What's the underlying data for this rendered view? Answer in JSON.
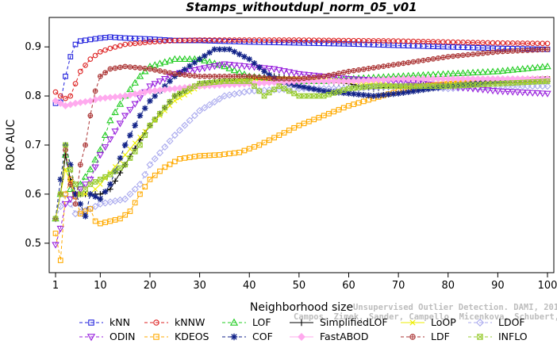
{
  "chart_data": {
    "type": "line",
    "title": "Stamps_withoutdupl_norm_05_v01",
    "xlabel": "Neighborhood size",
    "ylabel": "ROC AUC",
    "xlim": [
      0,
      100
    ],
    "ylim": [
      0.44,
      0.96
    ],
    "x_ticks": [
      1,
      10,
      20,
      30,
      40,
      50,
      60,
      70,
      80,
      90,
      100
    ],
    "y_ticks": [
      0.5,
      0.6,
      0.7,
      0.8,
      0.9
    ],
    "grid": false,
    "legend_position": "bottom",
    "series": [
      {
        "name": "kNN",
        "color": "#2222dd",
        "dash": "4,3",
        "marker": "square",
        "points": [
          [
            1,
            0.785
          ],
          [
            2,
            0.787
          ],
          [
            3,
            0.84
          ],
          [
            4,
            0.88
          ],
          [
            5,
            0.905
          ],
          [
            6,
            0.912
          ],
          [
            8,
            0.915
          ],
          [
            10,
            0.918
          ],
          [
            12,
            0.92
          ],
          [
            15,
            0.918
          ],
          [
            20,
            0.916
          ],
          [
            25,
            0.913
          ],
          [
            30,
            0.913
          ],
          [
            40,
            0.91
          ],
          [
            50,
            0.908
          ],
          [
            60,
            0.906
          ],
          [
            70,
            0.903
          ],
          [
            80,
            0.9
          ],
          [
            90,
            0.897
          ],
          [
            100,
            0.895
          ]
        ]
      },
      {
        "name": "kNNW",
        "color": "#dd2222",
        "dash": "4,3",
        "marker": "circle",
        "points": [
          [
            1,
            0.808
          ],
          [
            2,
            0.8
          ],
          [
            3,
            0.795
          ],
          [
            4,
            0.8
          ],
          [
            5,
            0.825
          ],
          [
            6,
            0.85
          ],
          [
            8,
            0.875
          ],
          [
            10,
            0.89
          ],
          [
            12,
            0.897
          ],
          [
            15,
            0.905
          ],
          [
            20,
            0.91
          ],
          [
            25,
            0.913
          ],
          [
            30,
            0.914
          ],
          [
            40,
            0.914
          ],
          [
            50,
            0.914
          ],
          [
            60,
            0.913
          ],
          [
            70,
            0.912
          ],
          [
            80,
            0.91
          ],
          [
            90,
            0.908
          ],
          [
            100,
            0.907
          ]
        ]
      },
      {
        "name": "LOF",
        "color": "#22cc22",
        "dash": "4,3",
        "marker": "triangle",
        "points": [
          [
            1,
            0.55
          ],
          [
            2,
            0.6
          ],
          [
            3,
            0.68
          ],
          [
            4,
            0.61
          ],
          [
            5,
            0.6
          ],
          [
            6,
            0.62
          ],
          [
            8,
            0.65
          ],
          [
            10,
            0.69
          ],
          [
            12,
            0.75
          ],
          [
            15,
            0.8
          ],
          [
            18,
            0.84
          ],
          [
            20,
            0.86
          ],
          [
            25,
            0.875
          ],
          [
            30,
            0.875
          ],
          [
            35,
            0.86
          ],
          [
            40,
            0.84
          ],
          [
            45,
            0.835
          ],
          [
            50,
            0.83
          ],
          [
            55,
            0.83
          ],
          [
            60,
            0.835
          ],
          [
            70,
            0.84
          ],
          [
            80,
            0.845
          ],
          [
            90,
            0.85
          ],
          [
            100,
            0.86
          ]
        ]
      },
      {
        "name": "SimplifiedLOF",
        "color": "#000000",
        "dash": "",
        "marker": "plus",
        "points": [
          [
            1,
            0.55
          ],
          [
            2,
            0.6
          ],
          [
            3,
            0.68
          ],
          [
            4,
            0.63
          ],
          [
            5,
            0.6
          ],
          [
            6,
            0.6
          ],
          [
            8,
            0.6
          ],
          [
            10,
            0.6
          ],
          [
            12,
            0.61
          ],
          [
            15,
            0.66
          ],
          [
            18,
            0.71
          ],
          [
            20,
            0.74
          ],
          [
            25,
            0.8
          ],
          [
            30,
            0.825
          ],
          [
            35,
            0.83
          ],
          [
            40,
            0.835
          ],
          [
            45,
            0.84
          ],
          [
            50,
            0.835
          ],
          [
            55,
            0.83
          ],
          [
            60,
            0.825
          ],
          [
            65,
            0.815
          ],
          [
            70,
            0.82
          ],
          [
            80,
            0.825
          ],
          [
            90,
            0.83
          ],
          [
            100,
            0.83
          ]
        ]
      },
      {
        "name": "LoOP",
        "color": "#eeee00",
        "dash": "",
        "marker": "x",
        "points": [
          [
            1,
            0.55
          ],
          [
            3,
            0.65
          ],
          [
            5,
            0.6
          ],
          [
            8,
            0.6
          ],
          [
            10,
            0.62
          ],
          [
            15,
            0.68
          ],
          [
            20,
            0.74
          ],
          [
            25,
            0.79
          ],
          [
            30,
            0.82
          ],
          [
            40,
            0.835
          ],
          [
            50,
            0.835
          ],
          [
            60,
            0.83
          ],
          [
            70,
            0.82
          ],
          [
            80,
            0.825
          ],
          [
            90,
            0.83
          ],
          [
            100,
            0.83
          ]
        ]
      },
      {
        "name": "LDOF",
        "color": "#aaaaee",
        "dash": "4,3",
        "marker": "diamond",
        "points": [
          [
            1,
            0.55
          ],
          [
            3,
            0.6
          ],
          [
            5,
            0.56
          ],
          [
            8,
            0.57
          ],
          [
            10,
            0.58
          ],
          [
            15,
            0.59
          ],
          [
            18,
            0.62
          ],
          [
            20,
            0.66
          ],
          [
            25,
            0.72
          ],
          [
            30,
            0.77
          ],
          [
            35,
            0.8
          ],
          [
            40,
            0.81
          ],
          [
            50,
            0.815
          ],
          [
            60,
            0.815
          ],
          [
            70,
            0.82
          ],
          [
            80,
            0.815
          ],
          [
            90,
            0.82
          ],
          [
            100,
            0.82
          ]
        ]
      },
      {
        "name": "ODIN",
        "color": "#9922dd",
        "dash": "4,3",
        "marker": "triangle-down",
        "points": [
          [
            1,
            0.497
          ],
          [
            2,
            0.53
          ],
          [
            3,
            0.58
          ],
          [
            5,
            0.6
          ],
          [
            8,
            0.63
          ],
          [
            10,
            0.68
          ],
          [
            15,
            0.76
          ],
          [
            20,
            0.82
          ],
          [
            25,
            0.845
          ],
          [
            30,
            0.855
          ],
          [
            35,
            0.865
          ],
          [
            40,
            0.86
          ],
          [
            45,
            0.855
          ],
          [
            50,
            0.845
          ],
          [
            60,
            0.835
          ],
          [
            70,
            0.83
          ],
          [
            80,
            0.82
          ],
          [
            90,
            0.81
          ],
          [
            100,
            0.805
          ]
        ]
      },
      {
        "name": "KDEOS",
        "color": "#ffaa00",
        "dash": "4,3",
        "marker": "square",
        "points": [
          [
            1,
            0.52
          ],
          [
            2,
            0.465
          ],
          [
            3,
            0.6
          ],
          [
            4,
            0.63
          ],
          [
            6,
            0.56
          ],
          [
            8,
            0.57
          ],
          [
            9,
            0.545
          ],
          [
            10,
            0.54
          ],
          [
            12,
            0.545
          ],
          [
            14,
            0.55
          ],
          [
            16,
            0.565
          ],
          [
            18,
            0.6
          ],
          [
            20,
            0.63
          ],
          [
            23,
            0.655
          ],
          [
            26,
            0.672
          ],
          [
            30,
            0.678
          ],
          [
            34,
            0.68
          ],
          [
            38,
            0.685
          ],
          [
            42,
            0.7
          ],
          [
            46,
            0.72
          ],
          [
            50,
            0.74
          ],
          [
            55,
            0.76
          ],
          [
            60,
            0.78
          ],
          [
            65,
            0.795
          ],
          [
            70,
            0.81
          ],
          [
            75,
            0.82
          ],
          [
            80,
            0.825
          ],
          [
            90,
            0.83
          ],
          [
            100,
            0.835
          ]
        ]
      },
      {
        "name": "COF",
        "color": "#112288",
        "dash": "4,3",
        "marker": "star",
        "points": [
          [
            1,
            0.55
          ],
          [
            2,
            0.63
          ],
          [
            3,
            0.7
          ],
          [
            4,
            0.66
          ],
          [
            5,
            0.6
          ],
          [
            6,
            0.58
          ],
          [
            7,
            0.555
          ],
          [
            8,
            0.6
          ],
          [
            10,
            0.59
          ],
          [
            12,
            0.62
          ],
          [
            15,
            0.7
          ],
          [
            18,
            0.76
          ],
          [
            20,
            0.79
          ],
          [
            25,
            0.84
          ],
          [
            30,
            0.875
          ],
          [
            33,
            0.895
          ],
          [
            36,
            0.895
          ],
          [
            40,
            0.875
          ],
          [
            43,
            0.85
          ],
          [
            46,
            0.83
          ],
          [
            50,
            0.82
          ],
          [
            55,
            0.81
          ],
          [
            60,
            0.805
          ],
          [
            65,
            0.8
          ],
          [
            70,
            0.805
          ],
          [
            80,
            0.82
          ],
          [
            90,
            0.83
          ],
          [
            100,
            0.835
          ]
        ]
      },
      {
        "name": "FastABOD",
        "color": "#ffaaee",
        "dash": "",
        "marker": "diamond-filled",
        "points": [
          [
            1,
            0.79
          ],
          [
            3,
            0.78
          ],
          [
            5,
            0.785
          ],
          [
            8,
            0.79
          ],
          [
            10,
            0.795
          ],
          [
            15,
            0.8
          ],
          [
            20,
            0.81
          ],
          [
            25,
            0.815
          ],
          [
            30,
            0.82
          ],
          [
            40,
            0.825
          ],
          [
            50,
            0.83
          ],
          [
            60,
            0.83
          ],
          [
            70,
            0.835
          ],
          [
            80,
            0.835
          ],
          [
            90,
            0.835
          ],
          [
            100,
            0.835
          ]
        ]
      },
      {
        "name": "LDF",
        "color": "#aa3333",
        "dash": "4,3",
        "marker": "circle-plus",
        "points": [
          [
            1,
            0.55
          ],
          [
            2,
            0.6
          ],
          [
            3,
            0.69
          ],
          [
            4,
            0.62
          ],
          [
            5,
            0.58
          ],
          [
            6,
            0.66
          ],
          [
            7,
            0.7
          ],
          [
            8,
            0.76
          ],
          [
            9,
            0.81
          ],
          [
            10,
            0.84
          ],
          [
            12,
            0.855
          ],
          [
            15,
            0.86
          ],
          [
            20,
            0.855
          ],
          [
            25,
            0.845
          ],
          [
            30,
            0.84
          ],
          [
            35,
            0.84
          ],
          [
            40,
            0.84
          ],
          [
            45,
            0.835
          ],
          [
            50,
            0.835
          ],
          [
            55,
            0.84
          ],
          [
            60,
            0.85
          ],
          [
            70,
            0.865
          ],
          [
            80,
            0.88
          ],
          [
            90,
            0.89
          ],
          [
            100,
            0.895
          ]
        ]
      },
      {
        "name": "INFLO",
        "color": "#99cc33",
        "dash": "4,3",
        "marker": "hourglass",
        "points": [
          [
            1,
            0.55
          ],
          [
            2,
            0.6
          ],
          [
            3,
            0.7
          ],
          [
            4,
            0.65
          ],
          [
            5,
            0.62
          ],
          [
            6,
            0.6
          ],
          [
            8,
            0.62
          ],
          [
            10,
            0.63
          ],
          [
            12,
            0.64
          ],
          [
            15,
            0.66
          ],
          [
            18,
            0.7
          ],
          [
            20,
            0.74
          ],
          [
            25,
            0.8
          ],
          [
            30,
            0.825
          ],
          [
            35,
            0.83
          ],
          [
            40,
            0.83
          ],
          [
            43,
            0.8
          ],
          [
            46,
            0.82
          ],
          [
            50,
            0.8
          ],
          [
            55,
            0.8
          ],
          [
            60,
            0.815
          ],
          [
            65,
            0.82
          ],
          [
            70,
            0.82
          ],
          [
            80,
            0.82
          ],
          [
            90,
            0.825
          ],
          [
            100,
            0.83
          ]
        ]
      }
    ],
    "legend_order": [
      "kNN",
      "kNNW",
      "LOF",
      "SimplifiedLOF",
      "LoOP",
      "LDOF",
      "ODIN",
      "KDEOS",
      "COF",
      "FastABOD",
      "LDF",
      "INFLO"
    ]
  },
  "watermark_lines": [
    "Unsupervised Outlier Detection. DAMI, 2015.",
    "Campos, Zimek, Sander, Campello, Micenkova, Schubert, Assent, Houle"
  ]
}
